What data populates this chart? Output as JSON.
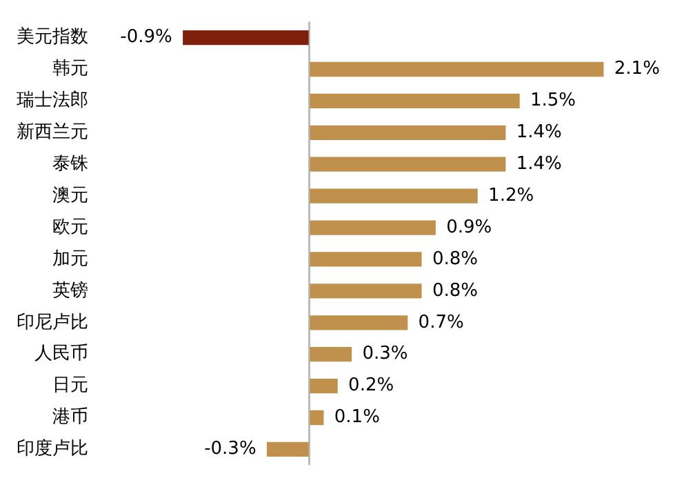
{
  "chart_data": {
    "type": "bar",
    "orientation": "horizontal",
    "categories": [
      "美元指数",
      "韩元",
      "瑞士法郎",
      "新西兰元",
      "泰铢",
      "澳元",
      "欧元",
      "加元",
      "英镑",
      "印尼卢比",
      "人民币",
      "日元",
      "港币",
      "印度卢比"
    ],
    "values": [
      -0.9,
      2.1,
      1.5,
      1.4,
      1.4,
      1.2,
      0.9,
      0.8,
      0.8,
      0.7,
      0.3,
      0.2,
      0.1,
      -0.3
    ],
    "colors": [
      "#7f200c",
      "#c0914c",
      "#c0914c",
      "#c0914c",
      "#c0914c",
      "#c0914c",
      "#c0914c",
      "#c0914c",
      "#c0914c",
      "#c0914c",
      "#c0914c",
      "#c0914c",
      "#c0914c",
      "#c0914c"
    ],
    "value_labels": [
      "-0.9%",
      "2.1%",
      "1.5%",
      "1.4%",
      "1.4%",
      "1.2%",
      "0.9%",
      "0.8%",
      "0.8%",
      "0.7%",
      "0.3%",
      "0.2%",
      "0.1%",
      "-0.3%"
    ],
    "grid": false,
    "legend": false,
    "tick_labels": "y"
  }
}
